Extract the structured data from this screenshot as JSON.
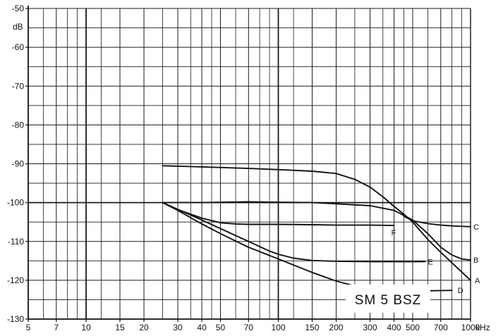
{
  "chart_data": {
    "type": "line",
    "title": "",
    "xlabel": "kHz",
    "ylabel": "dB",
    "x_scale": "log",
    "xlim": [
      5,
      1000
    ],
    "ylim": [
      -130,
      -50
    ],
    "grid": true,
    "x_ticks": [
      5,
      7,
      10,
      15,
      20,
      30,
      40,
      50,
      70,
      100,
      150,
      200,
      300,
      400,
      500,
      700,
      1000
    ],
    "x_tick_labels": [
      "5",
      "7",
      "10",
      "15",
      "20",
      "30",
      "40",
      "50",
      "70",
      "100",
      "150",
      "200",
      "300",
      "400",
      "500",
      "700",
      "1000"
    ],
    "x_minor_lines": [
      6,
      8,
      9,
      12,
      25,
      35,
      45,
      60,
      80,
      90,
      120,
      250,
      350,
      450,
      600,
      800,
      900
    ],
    "y_ticks": [
      -50,
      -60,
      -70,
      -80,
      -90,
      -100,
      -110,
      -120,
      -130
    ],
    "y_tick_labels": [
      "-50",
      "-60",
      "-70",
      "-80",
      "-90",
      "-100",
      "-110",
      "-120",
      "-130"
    ],
    "y_minor_lines": [
      -55,
      -65,
      -75,
      -85,
      -95,
      -105,
      -115,
      -125
    ],
    "annotation": "SM 5 BSZ",
    "series": [
      {
        "name": "A",
        "x": [
          25,
          40,
          70,
          100,
          150,
          200,
          250,
          300,
          350,
          400,
          450,
          500,
          600,
          700,
          800,
          1000
        ],
        "y": [
          -90.5,
          -90.8,
          -91.2,
          -91.5,
          -91.9,
          -92.5,
          -94,
          -96,
          -98.5,
          -101,
          -103,
          -105,
          -109.5,
          -112.8,
          -115.5,
          -120
        ]
      },
      {
        "name": "B",
        "x": [
          25,
          40,
          70,
          100,
          150,
          200,
          300,
          400,
          500,
          600,
          700,
          800,
          900,
          1000
        ],
        "y": [
          -100,
          -100,
          -99.8,
          -99.9,
          -100,
          -100.3,
          -100.8,
          -102,
          -104.5,
          -108,
          -111.5,
          -113.5,
          -114.5,
          -114.8
        ]
      },
      {
        "name": "C",
        "x": [
          450,
          500,
          600,
          700,
          800,
          900,
          1000
        ],
        "y": [
          -103.5,
          -104.7,
          -105.4,
          -105.8,
          -106,
          -106.1,
          -106.2
        ]
      },
      {
        "name": "D",
        "x": [
          25,
          30,
          40,
          50,
          70,
          100,
          150,
          200,
          250,
          300,
          400,
          500,
          600,
          800
        ],
        "y": [
          -100,
          -102,
          -105.5,
          -108,
          -111.5,
          -114.5,
          -118,
          -120.2,
          -121.5,
          -122.2,
          -122.6,
          -122.7,
          -122.7,
          -122.6
        ]
      },
      {
        "name": "E",
        "x": [
          25,
          40,
          70,
          90,
          100,
          120,
          150,
          200,
          300,
          400,
          500,
          580
        ],
        "y": [
          -100,
          -104.5,
          -110,
          -112.5,
          -113.3,
          -114.3,
          -114.9,
          -115.1,
          -115.2,
          -115.2,
          -115.2,
          -115.2
        ]
      },
      {
        "name": "F",
        "x": [
          25,
          30,
          40,
          50,
          60,
          70,
          100,
          150,
          200,
          300,
          400
        ],
        "y": [
          -100,
          -101.8,
          -104,
          -105.2,
          -105.5,
          -105.6,
          -105.6,
          -105.7,
          -105.8,
          -105.8,
          -105.9
        ]
      }
    ]
  },
  "colors": {
    "ink": "#111111",
    "grid": "#1a1a1a",
    "background": "#ffffff"
  }
}
